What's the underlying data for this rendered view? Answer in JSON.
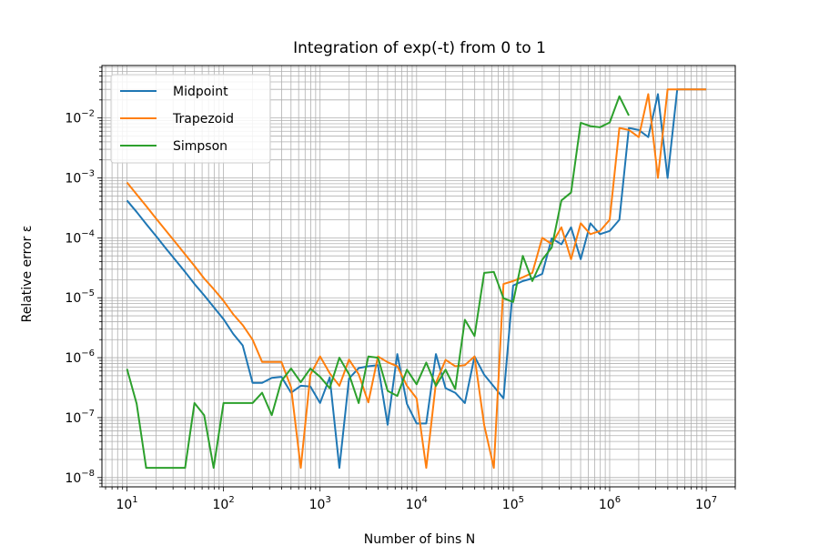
{
  "chart_data": {
    "type": "line",
    "title": "Integration of exp(-t) from 0 to 1",
    "xlabel": "Number of bins N",
    "ylabel": "Relative error ε",
    "xscale": "log",
    "yscale": "log",
    "xlim": [
      5.5,
      20000000
    ],
    "ylim": [
      7e-09,
      0.075
    ],
    "grid": "major and minor",
    "legend_position": "top-left",
    "x_ticks": [
      {
        "base": "10",
        "exp": "1",
        "value": 10
      },
      {
        "base": "10",
        "exp": "2",
        "value": 100
      },
      {
        "base": "10",
        "exp": "3",
        "value": 1000
      },
      {
        "base": "10",
        "exp": "4",
        "value": 10000
      },
      {
        "base": "10",
        "exp": "5",
        "value": 100000
      },
      {
        "base": "10",
        "exp": "6",
        "value": 1000000
      },
      {
        "base": "10",
        "exp": "7",
        "value": 10000000
      }
    ],
    "y_ticks": [
      {
        "base": "10",
        "exp": "−8",
        "value": 1e-08
      },
      {
        "base": "10",
        "exp": "−7",
        "value": 1e-07
      },
      {
        "base": "10",
        "exp": "−6",
        "value": 1e-06
      },
      {
        "base": "10",
        "exp": "−5",
        "value": 1e-05
      },
      {
        "base": "10",
        "exp": "−4",
        "value": 0.0001
      },
      {
        "base": "10",
        "exp": "−3",
        "value": 0.001
      },
      {
        "base": "10",
        "exp": "−2",
        "value": 0.01
      }
    ],
    "series": [
      {
        "name": "Midpoint",
        "color": "#1f77b4",
        "points": [
          [
            10,
            0.00042
          ],
          [
            12.6,
            0.00027
          ],
          [
            15.8,
            0.00017
          ],
          [
            20,
            0.000107
          ],
          [
            25,
            6.8e-05
          ],
          [
            31.6,
            4.3e-05
          ],
          [
            40,
            2.7e-05
          ],
          [
            50,
            1.7e-05
          ],
          [
            63,
            1.1e-05
          ],
          [
            79,
            7e-06
          ],
          [
            100,
            4.4e-06
          ],
          [
            126,
            2.5e-06
          ],
          [
            158,
            1.6e-06
          ],
          [
            200,
            3.8e-07
          ],
          [
            251,
            3.8e-07
          ],
          [
            316,
            4.6e-07
          ],
          [
            398,
            4.8e-07
          ],
          [
            501,
            2.6e-07
          ],
          [
            631,
            3.4e-07
          ],
          [
            794,
            3.3e-07
          ],
          [
            1000,
            1.75e-07
          ],
          [
            1259,
            4.7e-07
          ],
          [
            1585,
            1.45e-08
          ],
          [
            1995,
            4.5e-07
          ],
          [
            2512,
            6.7e-07
          ],
          [
            3162,
            7.2e-07
          ],
          [
            3981,
            7.5e-07
          ],
          [
            5012,
            7.6e-08
          ],
          [
            6310,
            1.15e-06
          ],
          [
            7943,
            1.7e-07
          ],
          [
            10000,
            8e-08
          ],
          [
            12589,
            8e-08
          ],
          [
            15849,
            1.15e-06
          ],
          [
            19953,
            3.1e-07
          ],
          [
            25119,
            2.6e-07
          ],
          [
            31623,
            1.75e-07
          ],
          [
            39811,
            1.05e-06
          ],
          [
            50119,
            5.2e-07
          ],
          [
            63096,
            3.3e-07
          ],
          [
            79433,
            2.1e-07
          ],
          [
            100000,
            1.6e-05
          ],
          [
            126000,
            1.9e-05
          ],
          [
            158000,
            2.1e-05
          ],
          [
            200000,
            2.5e-05
          ],
          [
            251000,
            9.8e-05
          ],
          [
            316000,
            7.8e-05
          ],
          [
            398000,
            0.00015
          ],
          [
            501000,
            4.4e-05
          ],
          [
            631000,
            0.000175
          ],
          [
            794000,
            0.000115
          ],
          [
            1000000,
            0.00013
          ],
          [
            1260000,
            0.0002
          ],
          [
            1580000,
            0.0068
          ],
          [
            2000000,
            0.0063
          ],
          [
            2510000,
            0.0048
          ],
          [
            3160000,
            0.025
          ],
          [
            3980000,
            0.001
          ],
          [
            5010000,
            0.03
          ],
          [
            6310000,
            0.03
          ],
          [
            10000000,
            0.03
          ]
        ]
      },
      {
        "name": "Trapezoid",
        "color": "#ff7f0e",
        "points": [
          [
            10,
            0.00084
          ],
          [
            12.6,
            0.00053
          ],
          [
            15.8,
            0.00034
          ],
          [
            20,
            0.00021
          ],
          [
            25,
            0.000135
          ],
          [
            31.6,
            8.5e-05
          ],
          [
            40,
            5.3e-05
          ],
          [
            50,
            3.4e-05
          ],
          [
            63,
            2.1e-05
          ],
          [
            79,
            1.4e-05
          ],
          [
            100,
            8.9e-06
          ],
          [
            126,
            5.3e-06
          ],
          [
            158,
            3.5e-06
          ],
          [
            200,
            2e-06
          ],
          [
            251,
            8.5e-07
          ],
          [
            316,
            8.5e-07
          ],
          [
            398,
            8.5e-07
          ],
          [
            501,
            3.2e-07
          ],
          [
            631,
            1.45e-08
          ],
          [
            794,
            5.2e-07
          ],
          [
            1000,
            1.05e-06
          ],
          [
            1259,
            5.5e-07
          ],
          [
            1585,
            3.4e-07
          ],
          [
            1995,
            9.3e-07
          ],
          [
            2512,
            5.3e-07
          ],
          [
            3162,
            1.8e-07
          ],
          [
            3981,
            1.05e-06
          ],
          [
            5012,
            8.4e-07
          ],
          [
            6310,
            7.2e-07
          ],
          [
            7943,
            3.4e-07
          ],
          [
            10000,
            2.1e-07
          ],
          [
            12589,
            1.45e-08
          ],
          [
            15849,
            3.8e-07
          ],
          [
            19953,
            9.2e-07
          ],
          [
            25119,
            7.2e-07
          ],
          [
            31623,
            7.5e-07
          ],
          [
            39811,
            1.05e-06
          ],
          [
            50119,
            7.5e-08
          ],
          [
            63096,
            1.45e-08
          ],
          [
            79433,
            1.7e-05
          ],
          [
            100000,
            1.9e-05
          ],
          [
            126000,
            2.2e-05
          ],
          [
            158000,
            2.6e-05
          ],
          [
            200000,
            0.0001
          ],
          [
            251000,
            7.9e-05
          ],
          [
            316000,
            0.00015
          ],
          [
            398000,
            4.4e-05
          ],
          [
            501000,
            0.000175
          ],
          [
            631000,
            0.000115
          ],
          [
            794000,
            0.00013
          ],
          [
            1000000,
            0.0002
          ],
          [
            1260000,
            0.0068
          ],
          [
            1580000,
            0.0063
          ],
          [
            2000000,
            0.0048
          ],
          [
            2510000,
            0.025
          ],
          [
            3160000,
            0.001
          ],
          [
            3980000,
            0.03
          ],
          [
            5010000,
            0.03
          ],
          [
            10000000,
            0.03
          ]
        ]
      },
      {
        "name": "Simpson",
        "color": "#2ca02c",
        "points": [
          [
            10,
            6.5e-07
          ],
          [
            12.6,
            1.7e-07
          ],
          [
            15.8,
            1.45e-08
          ],
          [
            20,
            1.45e-08
          ],
          [
            25,
            1.45e-08
          ],
          [
            31.6,
            1.45e-08
          ],
          [
            40,
            1.45e-08
          ],
          [
            50,
            1.75e-07
          ],
          [
            63,
            1.1e-07
          ],
          [
            79,
            1.45e-08
          ],
          [
            100,
            1.75e-07
          ],
          [
            126,
            1.75e-07
          ],
          [
            158,
            1.75e-07
          ],
          [
            200,
            1.75e-07
          ],
          [
            251,
            2.6e-07
          ],
          [
            316,
            1.1e-07
          ],
          [
            398,
            4.1e-07
          ],
          [
            501,
            6.6e-07
          ],
          [
            631,
            3.9e-07
          ],
          [
            794,
            6.6e-07
          ],
          [
            1000,
            4.8e-07
          ],
          [
            1259,
            3.1e-07
          ],
          [
            1585,
            1e-06
          ],
          [
            1995,
            5.3e-07
          ],
          [
            2512,
            1.75e-07
          ],
          [
            3162,
            1.05e-06
          ],
          [
            3981,
            1e-06
          ],
          [
            5012,
            2.8e-07
          ],
          [
            6310,
            2.3e-07
          ],
          [
            7943,
            6.3e-07
          ],
          [
            10000,
            3.6e-07
          ],
          [
            12589,
            8.3e-07
          ],
          [
            15849,
            3.4e-07
          ],
          [
            19953,
            6.3e-07
          ],
          [
            25119,
            3e-07
          ],
          [
            31623,
            4.3e-06
          ],
          [
            39811,
            2.3e-06
          ],
          [
            50119,
            2.6e-05
          ],
          [
            63096,
            2.7e-05
          ],
          [
            79433,
            9.8e-06
          ],
          [
            100000,
            8.5e-06
          ],
          [
            126000,
            5e-05
          ],
          [
            158000,
            1.9e-05
          ],
          [
            200000,
            4.3e-05
          ],
          [
            251000,
            6.9e-05
          ],
          [
            316000,
            0.00042
          ],
          [
            398000,
            0.00057
          ],
          [
            501000,
            0.0083
          ],
          [
            631000,
            0.0073
          ],
          [
            794000,
            0.007
          ],
          [
            1000000,
            0.0084
          ],
          [
            1260000,
            0.023
          ],
          [
            1580000,
            0.011
          ]
        ]
      }
    ]
  }
}
